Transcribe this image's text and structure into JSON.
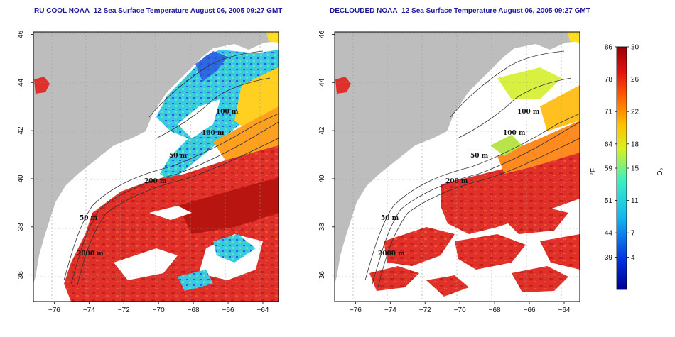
{
  "left_panel": {
    "title": "RU COOL NOAA–12 Sea Surface Temperature August 06, 2005 09:27 GMT"
  },
  "right_panel": {
    "title": "DECLOUDED NOAA–12 Sea Surface Temperature August 06, 2005 09:27 GMT"
  },
  "axes": {
    "x_ticks": [
      "−76",
      "−74",
      "−72",
      "−70",
      "−68",
      "−66",
      "−64"
    ],
    "y_ticks": [
      "46",
      "44",
      "42",
      "40",
      "38",
      "36"
    ],
    "x_values": [
      -76,
      -74,
      -72,
      -70,
      -68,
      -66,
      -64
    ],
    "y_values": [
      46,
      44,
      42,
      40,
      38,
      36
    ],
    "lon_range": [
      -77.2,
      -63.1
    ],
    "lat_range": [
      34.9,
      46.1
    ]
  },
  "contour_labels": {
    "left": [
      "100 m",
      "100 m",
      "50 m",
      "200 m",
      "50 m",
      "2000 m"
    ],
    "right": [
      "100 m",
      "100 m",
      "50 m",
      "200 m",
      "50 m",
      "2000 m"
    ]
  },
  "colorbar": {
    "unit_f": "°F",
    "unit_c": "°C",
    "fahrenheit_ticks": [
      "86",
      "78",
      "71",
      "64",
      "59",
      "51",
      "44",
      "39"
    ],
    "celsius_ticks": [
      "30",
      "26",
      "22",
      "18",
      "15",
      "11",
      "7",
      "4"
    ],
    "celsius_values": [
      30,
      26,
      22,
      18,
      15,
      11,
      7,
      4
    ],
    "range_c": [
      0,
      30
    ]
  },
  "colors": {
    "land": "#bdbdbd",
    "ocean_cloud": "#ffffff",
    "warm_water": "#e8261a",
    "hot_water": "#c41a14",
    "cool_water": "#23c8e0",
    "cold_water": "#1f3fd6",
    "title_text": "#1a1a9a"
  }
}
